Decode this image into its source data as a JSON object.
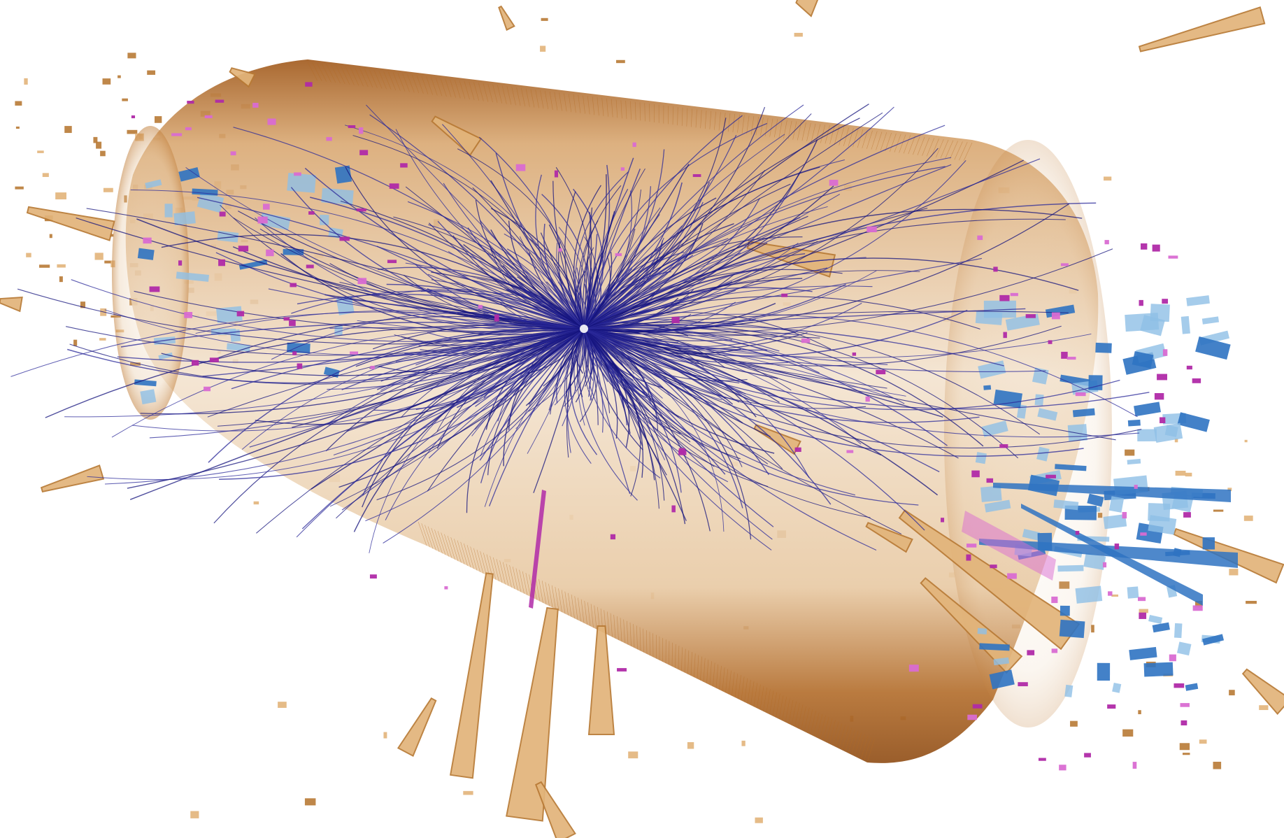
{
  "scene": {
    "description_name": "particle-collision-event-display",
    "colors": {
      "background": "#ffffff",
      "barrel_outer": "#b36a22",
      "barrel_inner": "#e9cfb0",
      "barrel_fill": "#f1dfc8",
      "calo_tower_dark": "#b87a35",
      "calo_tower_light": "#e2b47a",
      "track": "#16147e",
      "track_alt": "#2b2a9a",
      "muon_block_dark": "#2f73c2",
      "muon_block_light": "#8fbfe6",
      "hit": "#b02aa8",
      "hit_light": "#d96bd2"
    },
    "counts": {
      "tracks": 520,
      "hits": 130,
      "muon_blocks": 120,
      "debris_boxes": 140
    },
    "icons": {
      "vertex": "collision-vertex-icon",
      "barrel": "detector-barrel-icon",
      "tower": "calorimeter-tower-icon"
    }
  }
}
